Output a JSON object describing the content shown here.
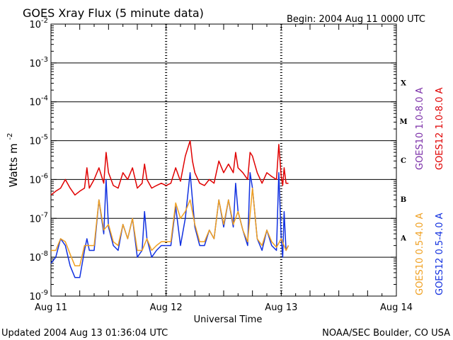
{
  "header": {
    "title": "GOES Xray Flux (5 minute data)",
    "begin": "Begin:  2004 Aug 11 0000 UTC"
  },
  "footer": {
    "updated": "Updated 2004 Aug 13 01:36:04 UTC",
    "credit": "NOAA/SEC Boulder, CO USA"
  },
  "chart_data": {
    "type": "line",
    "title": "GOES Xray Flux (5 minute data)",
    "xlabel": "Universal Time",
    "ylabel_base": "Watts m",
    "ylabel_exp": "-2",
    "y_scale": "log",
    "ylim": [
      1e-09,
      0.01
    ],
    "xlim": [
      0,
      72
    ],
    "x_ticks": [
      {
        "x": 0,
        "label": "Aug 11"
      },
      {
        "x": 24,
        "label": "Aug 12"
      },
      {
        "x": 48,
        "label": "Aug 13"
      },
      {
        "x": 72,
        "label": "Aug 14"
      }
    ],
    "y_ticks": [
      {
        "exp": -9,
        "label": "-9"
      },
      {
        "exp": -8,
        "label": "-8"
      },
      {
        "exp": -7,
        "label": "-7"
      },
      {
        "exp": -6,
        "label": "-6"
      },
      {
        "exp": -5,
        "label": "-5"
      },
      {
        "exp": -4,
        "label": "-4"
      },
      {
        "exp": -3,
        "label": "-3"
      },
      {
        "exp": -2,
        "label": "-2"
      }
    ],
    "flare_classes": [
      {
        "label": "A",
        "exp": -8
      },
      {
        "label": "B",
        "exp": -7
      },
      {
        "label": "C",
        "exp": -6
      },
      {
        "label": "M",
        "exp": -5
      },
      {
        "label": "X",
        "exp": -4
      }
    ],
    "grid": true,
    "series": [
      {
        "name": "GOES12 1.0-8.0 A",
        "color": "#e00000",
        "x": [
          0,
          1,
          2,
          3,
          4,
          5,
          6,
          7,
          7.5,
          8,
          9,
          10,
          11,
          11.5,
          12,
          13,
          14,
          15,
          16,
          17,
          18,
          19,
          19.5,
          20,
          21,
          22,
          23,
          24,
          25,
          26,
          27,
          28,
          29,
          29.5,
          30,
          31,
          32,
          33,
          34,
          35,
          36,
          37,
          38,
          38.5,
          39,
          40,
          41,
          41.5,
          42,
          43,
          44,
          45,
          46,
          47,
          47.5,
          48,
          48.3,
          48.6,
          49,
          49.5
        ],
        "y": [
          4e-07,
          5e-07,
          6e-07,
          1e-06,
          6e-07,
          4e-07,
          5e-07,
          6e-07,
          2e-06,
          6e-07,
          1e-06,
          2e-06,
          8e-07,
          5e-06,
          1.5e-06,
          7e-07,
          6e-07,
          1.5e-06,
          1e-06,
          2e-06,
          6e-07,
          8e-07,
          2.5e-06,
          1e-06,
          6e-07,
          7e-07,
          8e-07,
          7e-07,
          8e-07,
          2e-06,
          9e-07,
          4e-06,
          1e-05,
          3e-06,
          1.5e-06,
          8e-07,
          7e-07,
          1e-06,
          8e-07,
          3e-06,
          1.5e-06,
          2.5e-06,
          1.5e-06,
          5e-06,
          2e-06,
          1.5e-06,
          1e-06,
          5e-06,
          4e-06,
          1.5e-06,
          8e-07,
          1.5e-06,
          1.2e-06,
          1e-06,
          8e-06,
          1.2e-06,
          7e-07,
          2e-06,
          8e-07,
          8e-07
        ]
      },
      {
        "name": "GOES10 1.0-8.0 A",
        "color": "#7b2fa8",
        "x": [],
        "y": []
      },
      {
        "name": "GOES12 0.5-4.0 A",
        "color": "#1030e0",
        "x": [
          0,
          1,
          2,
          3,
          4,
          5,
          6,
          7,
          7.5,
          8,
          9,
          10,
          11,
          11.5,
          12,
          13,
          14,
          15,
          16,
          17,
          18,
          19,
          19.5,
          20,
          21,
          22,
          23,
          24,
          25,
          26,
          27,
          28,
          29,
          29.5,
          30,
          31,
          32,
          33,
          34,
          35,
          36,
          37,
          38,
          38.5,
          39,
          40,
          41,
          41.5,
          42,
          43,
          44,
          45,
          46,
          47,
          47.5,
          48,
          48.3,
          48.6,
          49,
          49.5
        ],
        "y": [
          7e-09,
          1e-08,
          3e-08,
          2e-08,
          6e-09,
          3e-09,
          3e-09,
          1.5e-08,
          3e-08,
          1.5e-08,
          1.5e-08,
          3e-07,
          4e-08,
          1e-06,
          6e-08,
          2e-08,
          1.5e-08,
          7e-08,
          3e-08,
          1e-07,
          1e-08,
          1.5e-08,
          1.5e-07,
          3e-08,
          1e-08,
          1.5e-08,
          2e-08,
          2e-08,
          2e-08,
          2e-07,
          2e-08,
          1e-07,
          1.5e-06,
          3e-07,
          6e-08,
          2e-08,
          2e-08,
          5e-08,
          3e-08,
          3e-07,
          6e-08,
          3e-07,
          6e-08,
          8e-07,
          1.5e-07,
          5e-08,
          2e-08,
          1.5e-06,
          6e-07,
          3e-08,
          1.5e-08,
          5e-08,
          2e-08,
          1.5e-08,
          1.5e-06,
          3e-08,
          1e-08,
          1.5e-07,
          1.5e-08,
          2e-08
        ]
      },
      {
        "name": "GOES10 0.5-4.0 A",
        "color": "#f0a020",
        "x": [
          0,
          1,
          2,
          3,
          4,
          5,
          6,
          7,
          8,
          9,
          10,
          11,
          12,
          13,
          14,
          15,
          16,
          17,
          18,
          19,
          20,
          21,
          22,
          23,
          24,
          25,
          26,
          27,
          28,
          29,
          30,
          31,
          32,
          33,
          34,
          35,
          36,
          37,
          38,
          39,
          40,
          41,
          42,
          43,
          44,
          45,
          46,
          47,
          48,
          49,
          49.5
        ],
        "y": [
          1.5e-08,
          1.5e-08,
          3e-08,
          2.5e-08,
          1.2e-08,
          6e-09,
          6e-09,
          2e-08,
          2e-08,
          2e-08,
          3e-07,
          5e-08,
          7e-08,
          2.5e-08,
          2e-08,
          7e-08,
          3e-08,
          1e-07,
          1.5e-08,
          1.5e-08,
          3e-08,
          1.5e-08,
          2e-08,
          2.5e-08,
          2.5e-08,
          2.5e-08,
          2.5e-07,
          1e-07,
          1.5e-07,
          3e-07,
          7e-08,
          2.5e-08,
          2.5e-08,
          5e-08,
          3e-08,
          3e-07,
          7e-08,
          3e-07,
          7e-08,
          1.5e-07,
          5e-08,
          2.5e-08,
          6e-07,
          3e-08,
          2e-08,
          5e-08,
          2.5e-08,
          1.8e-08,
          3e-08,
          1.5e-08,
          2e-08
        ]
      }
    ]
  }
}
